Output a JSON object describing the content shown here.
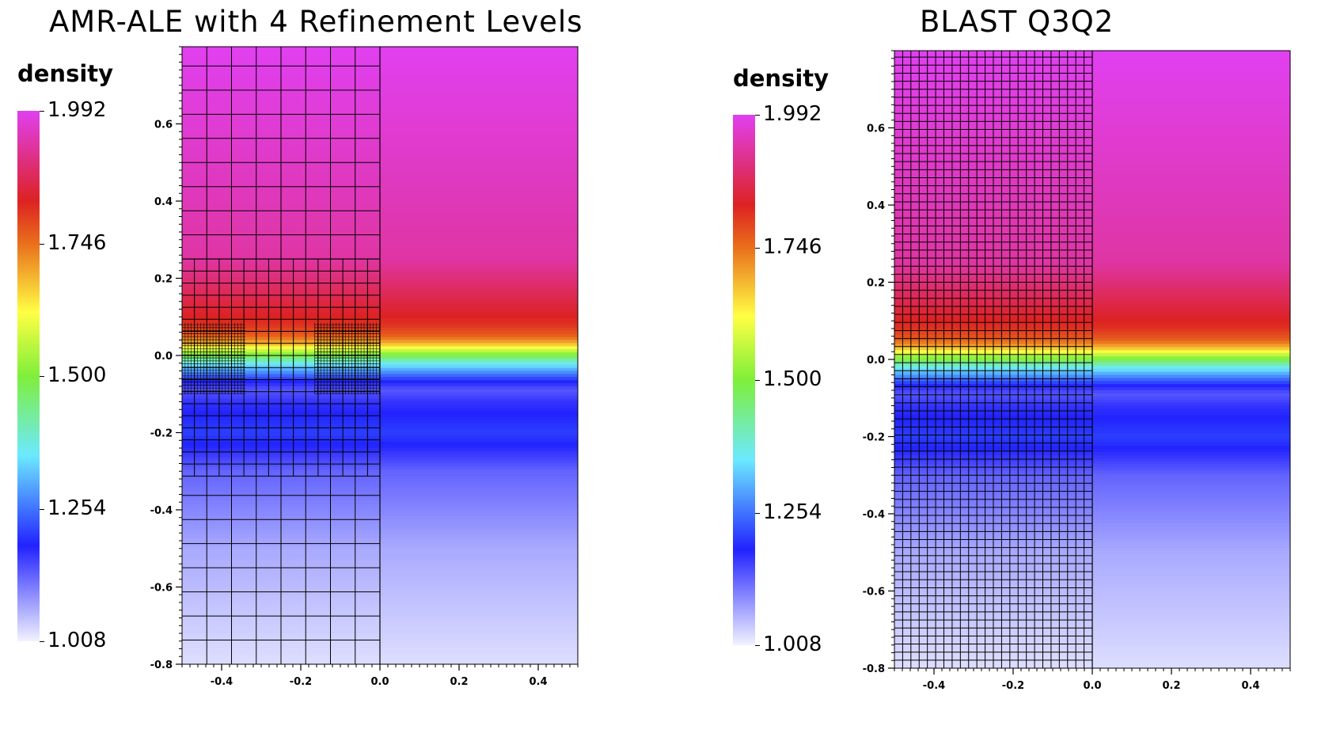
{
  "chart_data": [
    {
      "type": "heatmap",
      "title": "AMR-ALE with 4 Refinement Levels",
      "colorbar": {
        "title": "density",
        "labels": [
          "1.992",
          "1.746",
          "1.500",
          "1.254",
          "1.008"
        ],
        "min": 1.008,
        "max": 1.992
      },
      "xlim": [
        -0.5,
        0.5
      ],
      "ylim": [
        -0.8,
        0.8
      ],
      "xticks": [
        "-0.4",
        "-0.2",
        "0.0",
        "0.2",
        "0.4"
      ],
      "xtick_values": [
        -0.4,
        -0.2,
        0.0,
        0.2,
        0.4
      ],
      "yticks": [
        "0.6",
        "0.4",
        "0.2",
        "0.0",
        "-0.2",
        "-0.4",
        "-0.6",
        "-0.8"
      ],
      "ytick_values": [
        0.6,
        0.4,
        0.2,
        0.0,
        -0.2,
        -0.4,
        -0.6,
        -0.8
      ],
      "mesh_shown_region": {
        "x": [
          -0.5,
          0.0
        ],
        "y": [
          -0.8,
          0.8
        ]
      },
      "refinement_blocks": [
        {
          "x": [
            -0.5,
            0.0
          ],
          "y": [
            0.25,
            0.8
          ],
          "dx": 0.0625,
          "dy": 0.0625
        },
        {
          "x": [
            -0.5,
            0.0
          ],
          "y": [
            -0.8,
            -0.3125
          ],
          "dx": 0.0625,
          "dy": 0.0625
        },
        {
          "x": [
            -0.5,
            0.0
          ],
          "y": [
            -0.3125,
            0.25
          ],
          "dx": 0.03125,
          "dy": 0.03125
        },
        {
          "x": [
            -0.5,
            -0.34
          ],
          "y": [
            -0.1,
            0.085
          ],
          "dx": 0.0078125,
          "dy": 0.0078125
        },
        {
          "x": [
            -0.165,
            0.0
          ],
          "y": [
            -0.1,
            0.085
          ],
          "dx": 0.0078125,
          "dy": 0.0078125
        }
      ],
      "density_profile": {
        "y": [
          0.8,
          0.25,
          0.15,
          0.08,
          0.05,
          0.03,
          0.02,
          0.01,
          0.0,
          -0.02,
          -0.035,
          -0.05,
          -0.07,
          -0.09,
          -0.12,
          -0.2,
          -0.3,
          -0.5,
          -0.8
        ],
        "density": [
          1.992,
          1.93,
          1.86,
          1.81,
          1.76,
          1.68,
          1.61,
          1.55,
          1.49,
          1.37,
          1.31,
          1.25,
          1.18,
          1.14,
          1.17,
          1.21,
          1.13,
          1.07,
          1.025
        ]
      }
    },
    {
      "type": "heatmap",
      "title": "BLAST Q3Q2",
      "colorbar": {
        "title": "density",
        "labels": [
          "1.992",
          "1.746",
          "1.500",
          "1.254",
          "1.008"
        ],
        "min": 1.008,
        "max": 1.992
      },
      "xlim": [
        -0.5,
        0.5
      ],
      "ylim": [
        -0.8,
        0.8
      ],
      "xticks": [
        "-0.4",
        "-0.2",
        "0.0",
        "0.2",
        "0.4"
      ],
      "xtick_values": [
        -0.4,
        -0.2,
        0.0,
        0.2,
        0.4
      ],
      "yticks": [
        "0.6",
        "0.4",
        "0.2",
        "0.0",
        "-0.2",
        "-0.4",
        "-0.6",
        "-0.8"
      ],
      "ytick_values": [
        0.6,
        0.4,
        0.2,
        0.0,
        -0.2,
        -0.4,
        -0.6,
        -0.8
      ],
      "mesh_shown_region": {
        "x": [
          -0.5,
          0.0
        ],
        "y": [
          -0.8,
          0.8
        ]
      },
      "refinement_blocks": [
        {
          "x": [
            -0.5,
            0.0
          ],
          "y": [
            -0.8,
            0.8
          ],
          "dx": 0.0208333,
          "dy": 0.0208333
        }
      ],
      "density_profile": {
        "y": [
          0.8,
          0.25,
          0.15,
          0.08,
          0.05,
          0.03,
          0.02,
          0.01,
          0.0,
          -0.02,
          -0.035,
          -0.05,
          -0.07,
          -0.09,
          -0.12,
          -0.2,
          -0.3,
          -0.5,
          -0.8
        ],
        "density": [
          1.992,
          1.93,
          1.86,
          1.81,
          1.76,
          1.68,
          1.61,
          1.55,
          1.49,
          1.37,
          1.31,
          1.25,
          1.18,
          1.14,
          1.17,
          1.21,
          1.13,
          1.07,
          1.025
        ]
      }
    }
  ],
  "colormap": {
    "stops": [
      {
        "t": 0.0,
        "color": "#f2f2ff"
      },
      {
        "t": 0.18,
        "color": "#2222ff"
      },
      {
        "t": 0.35,
        "color": "#6ce9ff"
      },
      {
        "t": 0.5,
        "color": "#7fef3a"
      },
      {
        "t": 0.62,
        "color": "#ffff44"
      },
      {
        "t": 0.75,
        "color": "#e96f1c"
      },
      {
        "t": 0.83,
        "color": "#dd2222"
      },
      {
        "t": 1.0,
        "color": "#e040f0"
      }
    ]
  }
}
